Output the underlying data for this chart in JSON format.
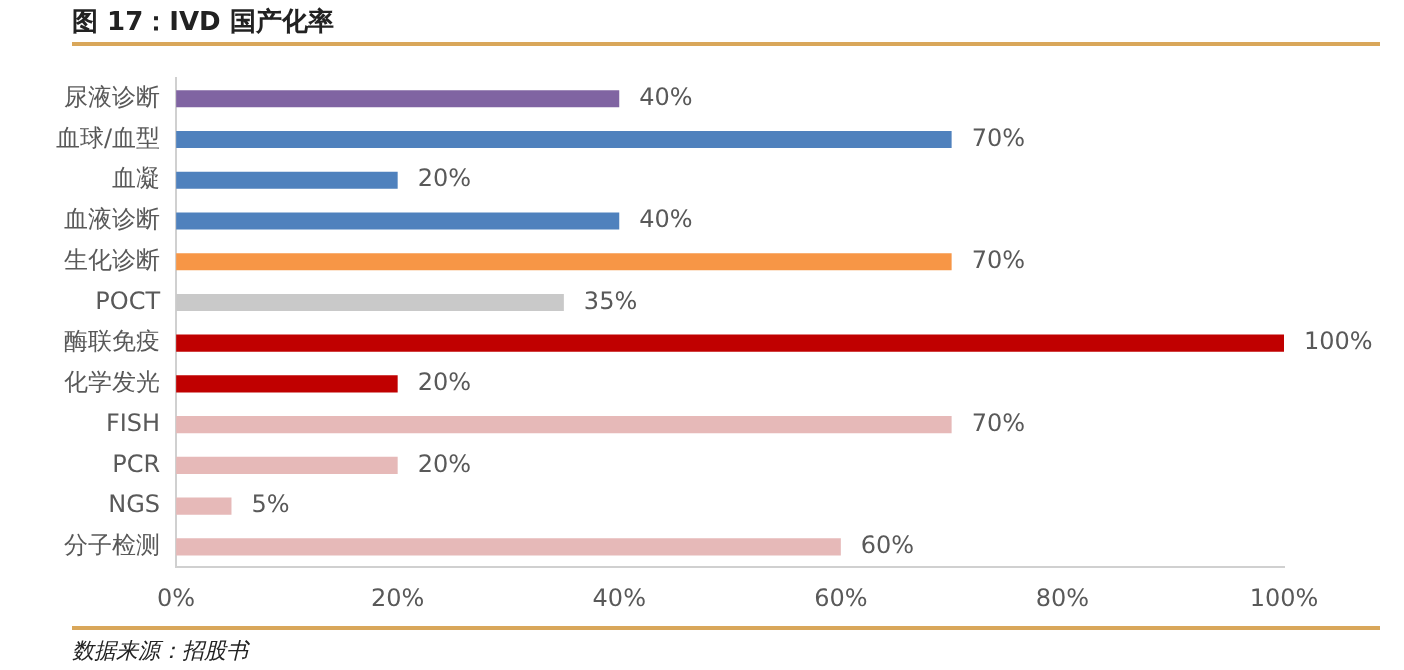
{
  "chart_data": {
    "type": "bar",
    "orientation": "horizontal",
    "title": "图 17：IVD 国产化率",
    "categories": [
      "尿液诊断",
      "血球/血型",
      "血凝",
      "血液诊断",
      "生化诊断",
      "POCT",
      "酶联免疫",
      "化学发光",
      "FISH",
      "PCR",
      "NGS",
      "分子检测"
    ],
    "values": [
      40,
      70,
      20,
      40,
      70,
      35,
      100,
      20,
      70,
      20,
      5,
      60
    ],
    "colors": [
      "#8064a2",
      "#4f81bd",
      "#4f81bd",
      "#4f81bd",
      "#f79646",
      "#c9c9c9",
      "#c00000",
      "#c00000",
      "#e6b9b8",
      "#e6b9b8",
      "#e6b9b8",
      "#e6b9b8"
    ],
    "value_labels": [
      "40%",
      "70%",
      "20%",
      "40%",
      "70%",
      "35%",
      "100%",
      "20%",
      "70%",
      "20%",
      "5%",
      "60%"
    ],
    "xlim": [
      0,
      100
    ],
    "xticks": [
      {
        "value": 0,
        "label": "0%"
      },
      {
        "value": 20,
        "label": "20%"
      },
      {
        "value": 40,
        "label": "40%"
      },
      {
        "value": 60,
        "label": "60%"
      },
      {
        "value": 80,
        "label": "80%"
      },
      {
        "value": 100,
        "label": "100%"
      }
    ],
    "grid": false,
    "legend": false,
    "annotations": [
      "数据来源：招股书"
    ]
  }
}
